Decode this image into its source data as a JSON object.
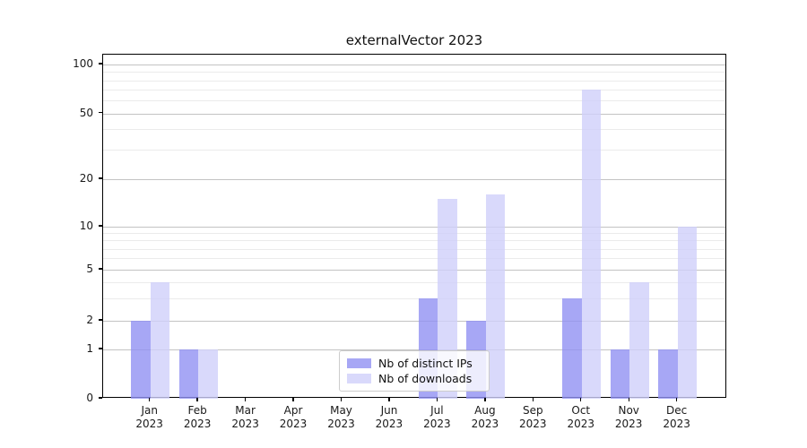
{
  "title": "externalVector 2023",
  "colors": {
    "ips_bar": "rgba(145,145,243,0.8)",
    "downloads_bar": "rgba(208,208,250,0.8)",
    "grid_major": "#c3c3c3",
    "grid_minor": "#ebebeb",
    "axis": "#000000"
  },
  "legend": {
    "items": [
      {
        "label": "Nb of distinct IPs",
        "color_key": "ips_bar"
      },
      {
        "label": "Nb of downloads",
        "color_key": "downloads_bar"
      }
    ]
  },
  "chart_data": {
    "type": "bar",
    "title": "externalVector 2023",
    "categories": [
      "Jan\n2023",
      "Feb\n2023",
      "Mar\n2023",
      "Apr\n2023",
      "May\n2023",
      "Jun\n2023",
      "Jul\n2023",
      "Aug\n2023",
      "Sep\n2023",
      "Oct\n2023",
      "Nov\n2023",
      "Dec\n2023"
    ],
    "series": [
      {
        "name": "Nb of distinct IPs",
        "values": [
          2,
          1,
          0,
          0,
          0,
          0,
          3,
          2,
          0,
          3,
          1,
          1
        ]
      },
      {
        "name": "Nb of downloads",
        "values": [
          4,
          1,
          0,
          0,
          0,
          0,
          15,
          16,
          0,
          70,
          4,
          10
        ]
      }
    ],
    "xlabel": "",
    "ylabel": "",
    "yscale": "symlog",
    "yticks": [
      0,
      1,
      2,
      5,
      10,
      20,
      50,
      100
    ],
    "yticks_minor": [
      3,
      4,
      6,
      7,
      8,
      9,
      30,
      40,
      60,
      70,
      80,
      90
    ],
    "ylim": [
      0,
      120
    ],
    "grid": "on (horizontal major + minor)",
    "legend_position": "lower center"
  }
}
